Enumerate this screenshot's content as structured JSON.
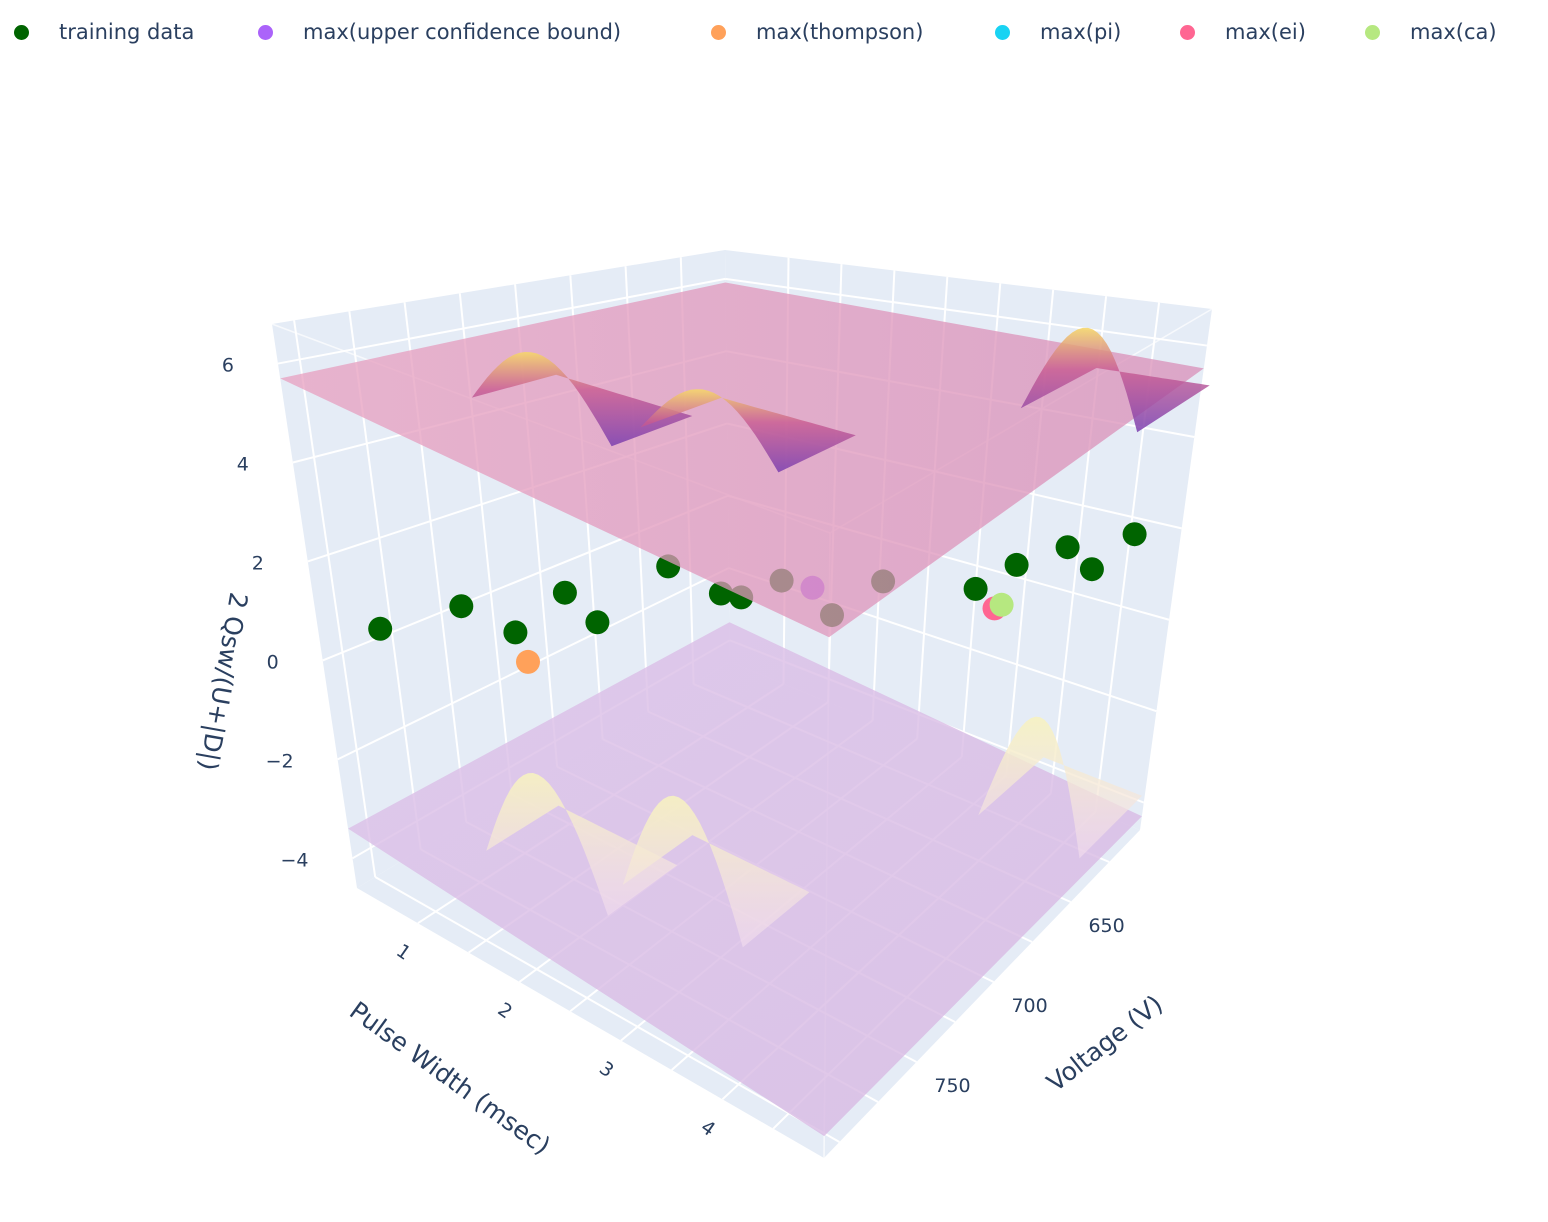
{
  "chart_data": {
    "type": "scatter3d+surface",
    "axes": {
      "x": {
        "title": "Pulse Width (msec)",
        "ticks": [
          "1",
          "2",
          "3",
          "4"
        ]
      },
      "y": {
        "title": "Voltage (V)",
        "ticks": [
          "650",
          "700",
          "750"
        ]
      },
      "z": {
        "title": "2 Qsw/(U+|D|)",
        "ticks": [
          "−4",
          "−2",
          "0",
          "2",
          "4",
          "6"
        ]
      }
    },
    "legend": [
      {
        "name": "training data",
        "color": "#006400"
      },
      {
        "name": "max(upper confidence bound)",
        "color": "#ab63fa"
      },
      {
        "name": "max(thompson)",
        "color": "#ffa15a"
      },
      {
        "name": "max(pi)",
        "color": "#19d3f3"
      },
      {
        "name": "max(ei)",
        "color": "#ff6692"
      },
      {
        "name": "max(ca)",
        "color": "#b6e880"
      }
    ],
    "training_data": [
      {
        "x": 0.8,
        "y": 800,
        "z": 0.9
      },
      {
        "x": 1.4,
        "y": 790,
        "z": 1.8
      },
      {
        "x": 1.6,
        "y": 775,
        "z": 1.2
      },
      {
        "x": 2.0,
        "y": 770,
        "z": 2.3
      },
      {
        "x": 2.1,
        "y": 760,
        "z": 1.6
      },
      {
        "x": 2.6,
        "y": 750,
        "z": 3.0
      },
      {
        "x": 2.9,
        "y": 740,
        "z": 2.5
      },
      {
        "x": 3.0,
        "y": 735,
        "z": 2.4
      },
      {
        "x": 3.2,
        "y": 725,
        "z": 2.7
      },
      {
        "x": 3.5,
        "y": 715,
        "z": 2.0
      },
      {
        "x": 3.8,
        "y": 705,
        "z": 2.7
      },
      {
        "x": 3.6,
        "y": 640,
        "z": 0.8
      },
      {
        "x": 3.9,
        "y": 635,
        "z": 1.4
      },
      {
        "x": 4.3,
        "y": 630,
        "z": 1.9
      },
      {
        "x": 4.4,
        "y": 620,
        "z": 1.2
      },
      {
        "x": 4.7,
        "y": 615,
        "z": 2.0
      }
    ],
    "maxima": [
      {
        "name": "max(upper confidence bound)",
        "x": 3.4,
        "y": 720,
        "z": 2.6
      },
      {
        "name": "max(thompson)",
        "x": 1.6,
        "y": 770,
        "z": 0.5
      },
      {
        "name": "max(ei)",
        "x": 3.8,
        "y": 640,
        "z": 0.5
      },
      {
        "name": "max(ca)",
        "x": 3.9,
        "y": 642,
        "z": 0.7
      }
    ],
    "surfaces": [
      {
        "name": "upper confidence surface",
        "base_z": 5.5
      },
      {
        "name": "lower confidence surface",
        "base_z": -4.0
      }
    ]
  }
}
